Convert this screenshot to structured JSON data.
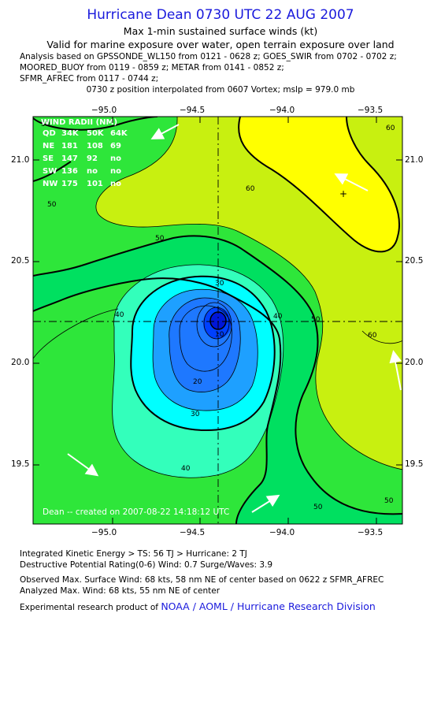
{
  "header": {
    "title": "Hurricane Dean 0730 UTC 22 AUG 2007",
    "subtitle1": "Max 1-min sustained surface winds (kt)",
    "subtitle2": "Valid for marine exposure over water, open terrain exposure over land",
    "analysis_lines": [
      "Analysis based on  GPSSONDE_WL150 from 0121 - 0628 z;  GOES_SWIR from 0702 - 0702 z;",
      "MOORED_BUOY from 0119 - 0859 z;  METAR from 0141 - 0852 z;",
      "SFMR_AFREC from 0117 - 0744 z;"
    ],
    "position_note": "0730 z position interpolated from 0607 Vortex; mslp = 979.0 mb"
  },
  "map": {
    "lon_ticks": [
      "−95.0",
      "−94.5",
      "−94.0",
      "−93.5"
    ],
    "lat_ticks": [
      "21.0",
      "20.5",
      "20.0",
      "19.5"
    ],
    "contour_labels": [
      "60",
      "60",
      "60",
      "50",
      "50",
      "50",
      "50",
      "50",
      "50",
      "40",
      "40",
      "40",
      "30",
      "30",
      "20",
      "10"
    ],
    "wind_radii": {
      "title": "WIND RADII (NM)",
      "header": [
        "QD",
        "34K",
        "50K",
        "64K"
      ],
      "rows": [
        [
          "NE",
          "181",
          "108",
          "69"
        ],
        [
          "SE",
          "147",
          "92",
          "no"
        ],
        [
          "SW",
          "136",
          "no",
          "no"
        ],
        [
          "NW",
          "175",
          "101",
          "no"
        ]
      ]
    },
    "created_note": "Dean -- created on 2007-08-22 14:18:12 UTC",
    "colors": {
      "lt60": "#2ee63a",
      "band60_70": "#c8f010",
      "gt70": "#ffff00",
      "band50_60": "#00e060",
      "band40_50": "#33ffbb",
      "band30_40": "#00ffff",
      "band20_30": "#1ea0ff",
      "band10_20": "#1e78ff",
      "core": "#0040ff"
    }
  },
  "footer": {
    "ike": "Integrated Kinetic Energy > TS: 56 TJ   > Hurricane: 2 TJ",
    "dpr": "Destructive Potential Rating(0-6)   Wind: 0.7 Surge/Waves: 3.9",
    "observed": "Observed Max. Surface Wind: 68 kts, 58 nm NE of center based on 0622 z SFMR_AFREC",
    "analyzed": "Analyzed Max. Wind: 68 kts, 55 nm NE of center",
    "product_prefix": "Experimental research product of ",
    "product_org": "NOAA / AOML / Hurricane Research Division"
  }
}
